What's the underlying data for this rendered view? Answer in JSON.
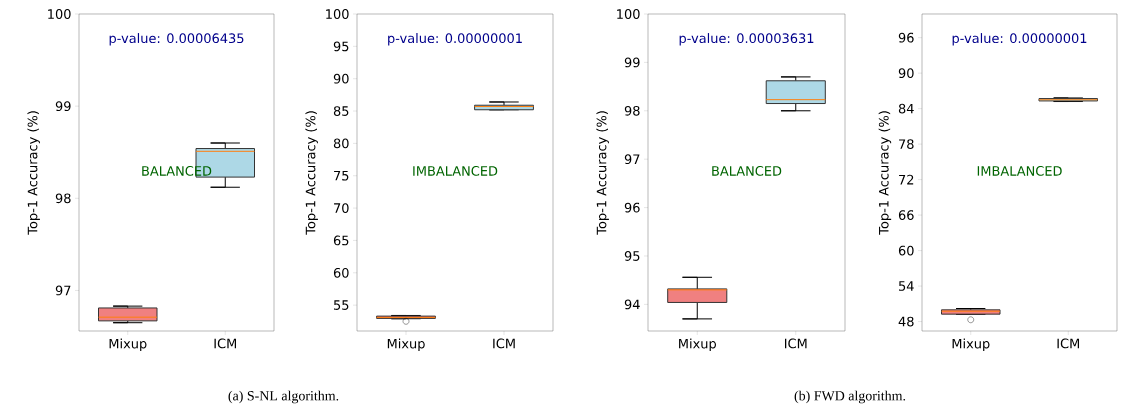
{
  "chart_data": [
    {
      "type": "box",
      "categories": [
        "Mixup",
        "ICM"
      ],
      "ylabel": "Top-1 Accuracy (%)",
      "ylim": [
        96.56,
        100
      ],
      "yticks": [
        97,
        98,
        99,
        100
      ],
      "colors": [
        "#f08080",
        "#add8e6"
      ],
      "boxes": [
        {
          "low": 96.65,
          "q1": 96.67,
          "median": 96.71,
          "q3": 96.81,
          "high": 96.83
        },
        {
          "low": 98.12,
          "q1": 98.23,
          "median": 98.51,
          "q3": 98.54,
          "high": 98.6
        }
      ],
      "annotations": [
        "p-value: 0.00006435",
        "BALANCED",
        "(a) S-NL algorithm."
      ]
    },
    {
      "type": "box",
      "categories": [
        "Mixup",
        "ICM"
      ],
      "ylabel": "Top-1 Accuracy (%)",
      "ylim": [
        51,
        100
      ],
      "yticks": [
        55,
        60,
        65,
        70,
        75,
        80,
        85,
        90,
        95,
        100
      ],
      "colors": [
        "#f08080",
        "#add8e6"
      ],
      "boxes": [
        {
          "low": 52.9,
          "q1": 52.95,
          "median": 53.1,
          "q3": 53.3,
          "high": 53.4,
          "outliers": [
            52.5
          ]
        },
        {
          "low": 85.2,
          "q1": 85.2,
          "median": 85.7,
          "q3": 85.9,
          "high": 86.4
        }
      ],
      "annotations": [
        "p-value: 0.00000001",
        "IMBALANCED"
      ]
    },
    {
      "type": "box",
      "categories": [
        "Mixup",
        "ICM"
      ],
      "ylabel": "Top-1 Accuracy (%)",
      "ylim": [
        93.45,
        100
      ],
      "yticks": [
        94,
        95,
        96,
        97,
        98,
        99,
        100
      ],
      "colors": [
        "#f08080",
        "#add8e6"
      ],
      "boxes": [
        {
          "low": 93.7,
          "q1": 94.04,
          "median": 94.3,
          "q3": 94.32,
          "high": 94.56
        },
        {
          "low": 98.0,
          "q1": 98.15,
          "median": 98.23,
          "q3": 98.62,
          "high": 98.7
        }
      ],
      "annotations": [
        "p-value: 0.00003631",
        "BALANCED",
        "(b) FWD algorithm."
      ]
    },
    {
      "type": "box",
      "categories": [
        "Mixup",
        "ICM"
      ],
      "ylabel": "Top-1 Accuracy (%)",
      "ylim": [
        46.4,
        100
      ],
      "yticks": [
        48,
        54,
        60,
        66,
        72,
        78,
        84,
        90,
        96
      ],
      "colors": [
        "#f08080",
        "#add8e6"
      ],
      "boxes": [
        {
          "low": 49.2,
          "q1": 49.25,
          "median": 49.75,
          "q3": 49.98,
          "high": 50.2,
          "outliers": [
            48.3
          ]
        },
        {
          "low": 85.2,
          "q1": 85.3,
          "median": 85.5,
          "q3": 85.7,
          "high": 85.8
        }
      ],
      "annotations": [
        "p-value: 0.00000001",
        "IMBALANCED"
      ]
    }
  ]
}
